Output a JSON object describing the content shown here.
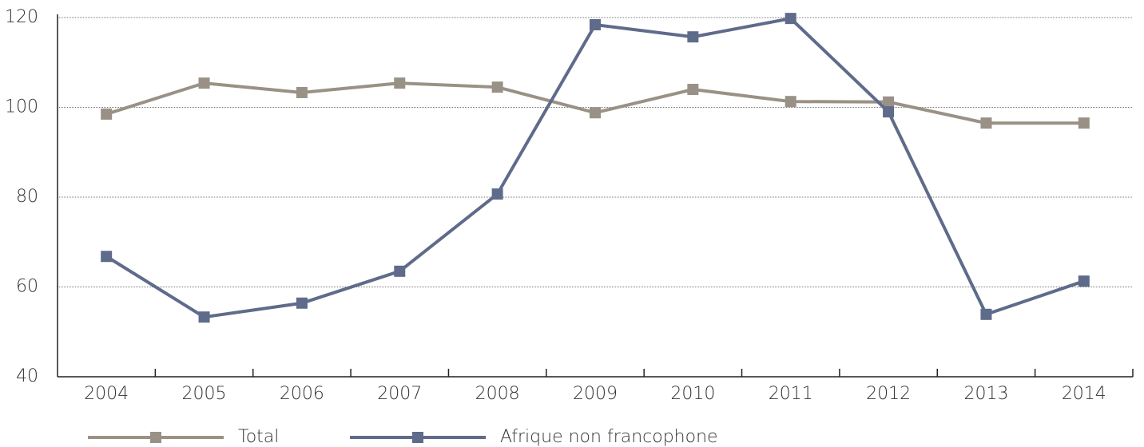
{
  "chart_data": {
    "type": "line",
    "categories": [
      "2004",
      "2005",
      "2006",
      "2007",
      "2008",
      "2009",
      "2010",
      "2011",
      "2012",
      "2013",
      "2014"
    ],
    "series": [
      {
        "name": "Total",
        "color": "#9a9186",
        "values": [
          98.5,
          105.4,
          103.3,
          105.4,
          104.5,
          98.8,
          104,
          101.3,
          101.2,
          96.5,
          96.5
        ]
      },
      {
        "name": "Afrique non francophone",
        "color": "#5f6b8a",
        "values": [
          66.8,
          53.3,
          56.4,
          63.5,
          80.7,
          118.4,
          115.7,
          119.8,
          99,
          53.9,
          61.3
        ]
      }
    ],
    "ylim": [
      40,
      120
    ],
    "yticks": [
      40,
      60,
      80,
      100,
      120
    ],
    "grid": true
  }
}
